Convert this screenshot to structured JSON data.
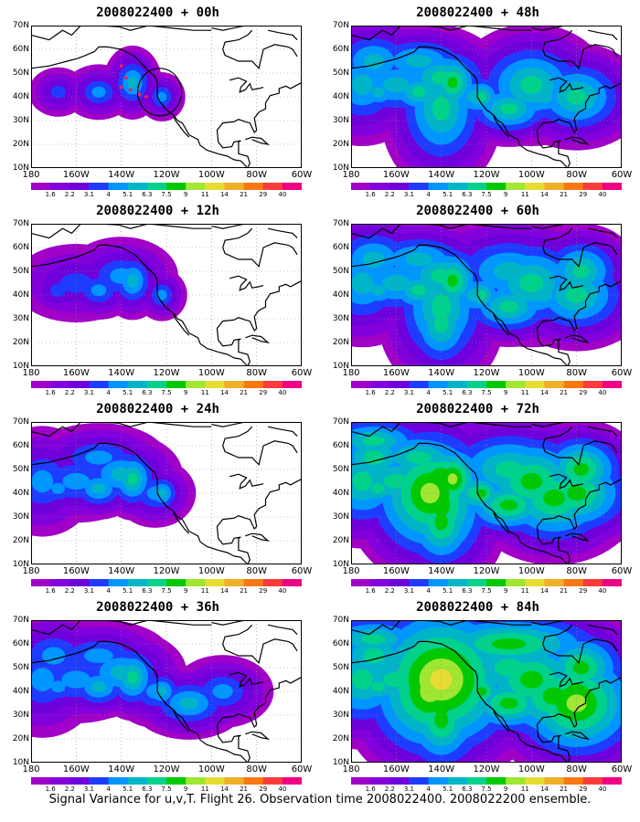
{
  "caption": "Signal Variance for u,v,T. Flight 26. Observation time 2008022400. 2008022200 ensemble.",
  "y_labels": [
    "70N",
    "60N",
    "50N",
    "40N",
    "30N",
    "20N",
    "10N"
  ],
  "x_labels": [
    "180",
    "160W",
    "140W",
    "120W",
    "100W",
    "80W",
    "60W"
  ],
  "colorbar": {
    "labels": [
      "1.6",
      "2.2",
      "3.1",
      "4",
      "5.1",
      "6.3",
      "7.5",
      "9",
      "11",
      "14",
      "21",
      "29",
      "40"
    ],
    "colors": [
      "#a000c8",
      "#8200dc",
      "#6e00dc",
      "#1e3cff",
      "#0096ff",
      "#00b4c8",
      "#00d28c",
      "#00c800",
      "#a0e632",
      "#e6dc32",
      "#f0af28",
      "#fa7814",
      "#fa3c3c",
      "#f00082"
    ]
  },
  "panels": [
    {
      "title": "2008022400 + 00h",
      "level": 0
    },
    {
      "title": "2008022400 + 12h",
      "level": 1
    },
    {
      "title": "2008022400 + 24h",
      "level": 2
    },
    {
      "title": "2008022400 + 36h",
      "level": 3
    },
    {
      "title": "2008022400 + 48h",
      "level": 4
    },
    {
      "title": "2008022400 + 60h",
      "level": 5
    },
    {
      "title": "2008022400 + 72h",
      "level": 6
    },
    {
      "title": "2008022400 + 84h",
      "level": 7
    }
  ]
}
